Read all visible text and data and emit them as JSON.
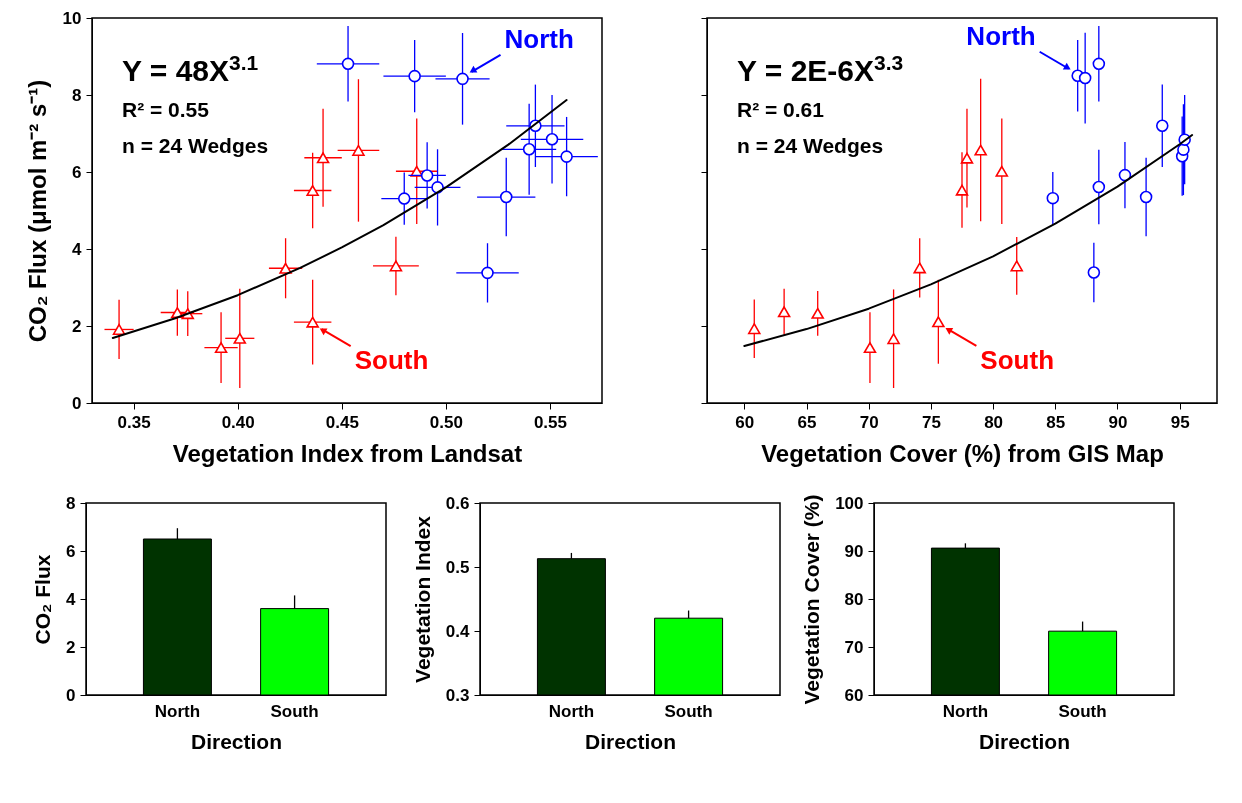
{
  "chart_data": [
    {
      "type": "scatter",
      "xlabel": "Vegetation Index from Landsat",
      "ylabel": "CO₂ Flux (μmol m⁻² s⁻¹)",
      "xlim": [
        0.33,
        0.575
      ],
      "xticks": [
        0.35,
        {
          "value": 0.4,
          "label": "0.40"
        },
        0.45,
        {
          "value": 0.5,
          "label": "0.50"
        },
        0.55
      ],
      "ylim": [
        0,
        10
      ],
      "yticks": [
        0,
        2,
        4,
        6,
        8,
        10
      ],
      "annotations": [
        "Y = 48X$^{3.1}$",
        "R² = 0.55",
        "n = 24 Wedges",
        {
          "text": "North",
          "x": 0.508,
          "y": 8.42
        },
        {
          "text": "South",
          "x": 0.436,
          "y": 2.1
        }
      ],
      "series": [
        {
          "type": "scatter",
          "color": "#ff0000",
          "marker": "triangle",
          "x": [
            0.343,
            0.371,
            0.376,
            0.392,
            0.401,
            0.423,
            0.436,
            0.436,
            0.441,
            0.458,
            0.476,
            0.486
          ],
          "values": [
            1.91,
            2.35,
            2.32,
            1.44,
            1.68,
            3.5,
            2.1,
            5.52,
            6.37,
            6.56,
            3.56,
            6.02
          ],
          "xerrors": [
            0.007,
            0.008,
            0.007,
            0.008,
            0.007,
            0.008,
            0.009,
            0.009,
            0.009,
            0.01,
            0.011,
            0.01
          ],
          "errors": [
            0.77,
            0.6,
            0.58,
            0.92,
            1.29,
            0.78,
            1.1,
            0.98,
            1.27,
            1.85,
            0.76,
            1.37
          ]
        },
        {
          "type": "scatter",
          "color": "#0000ff",
          "marker": "circle",
          "x": [
            0.453,
            0.485,
            0.508,
            0.48,
            0.491,
            0.496,
            0.52,
            0.529,
            0.54,
            0.543,
            0.551,
            0.558
          ],
          "values": [
            8.81,
            8.49,
            8.42,
            5.31,
            5.91,
            5.6,
            3.38,
            5.35,
            6.59,
            7.2,
            6.85,
            6.4
          ],
          "xerrors": [
            0.015,
            0.015,
            0.013,
            0.011,
            0.009,
            0.011,
            0.015,
            0.014,
            0.013,
            0.014,
            0.015,
            0.015
          ],
          "errors": [
            0.98,
            0.94,
            1.19,
            0.68,
            0.86,
            0.99,
            0.77,
            1.02,
            1.18,
            1.07,
            1.15,
            1.03
          ]
        },
        {
          "type": "line",
          "color": "#000000",
          "x": [
            0.34,
            0.37,
            0.4,
            0.43,
            0.45,
            0.47,
            0.5,
            0.53,
            0.558
          ],
          "values": [
            1.69,
            2.2,
            2.8,
            3.51,
            4.04,
            4.62,
            5.6,
            6.71,
            7.87
          ]
        }
      ]
    },
    {
      "type": "scatter",
      "xlabel": "Vegetation Cover (%) from GIS Map",
      "xlim": [
        57,
        98
      ],
      "xticks": [
        60,
        65,
        70,
        75,
        80,
        85,
        90,
        95
      ],
      "ylim": [
        0,
        10
      ],
      "yticks": [
        0,
        2,
        4,
        6,
        8,
        10
      ],
      "tick_labels": "x",
      "annotations": [
        "Y = 2E-6X$^{3.3}$",
        "R² = 0.61",
        "n = 24 Wedges",
        {
          "text": "North",
          "x": 86.8,
          "y": 8.5
        },
        {
          "text": "South",
          "x": 75.6,
          "y": 2.11
        }
      ],
      "series": [
        {
          "type": "scatter",
          "color": "#ff0000",
          "marker": "triangle",
          "x": [
            60.8,
            63.2,
            65.9,
            70.1,
            72.0,
            74.1,
            75.6,
            77.5,
            77.9,
            79.0,
            81.9,
            80.7
          ],
          "values": [
            1.93,
            2.37,
            2.33,
            1.44,
            1.67,
            3.51,
            2.11,
            5.53,
            6.36,
            6.57,
            3.56,
            6.02
          ],
          "errors": [
            0.76,
            0.6,
            0.58,
            0.92,
            1.28,
            0.77,
            1.09,
            0.98,
            1.28,
            1.85,
            0.75,
            1.37
          ]
        },
        {
          "type": "scatter",
          "color": "#0000ff",
          "marker": "circle",
          "x": [
            86.8,
            87.4,
            88.5,
            84.8,
            88.5,
            90.6,
            92.3,
            88.1,
            93.6,
            95.2,
            95.3,
            95.4
          ],
          "values": [
            8.5,
            8.44,
            8.81,
            5.32,
            5.61,
            5.92,
            5.35,
            3.39,
            7.2,
            6.41,
            6.58,
            6.84
          ],
          "errors": [
            0.93,
            1.18,
            0.98,
            0.68,
            0.97,
            0.86,
            1.02,
            0.77,
            1.07,
            1.03,
            1.18,
            1.16
          ]
        },
        {
          "type": "line",
          "color": "#000000",
          "x": [
            60,
            65,
            70,
            75,
            80,
            85,
            90,
            95,
            96
          ],
          "values": [
            1.48,
            1.92,
            2.45,
            3.08,
            3.81,
            4.66,
            5.62,
            6.72,
            6.96
          ]
        }
      ]
    },
    {
      "type": "bar",
      "xlabel": "Direction",
      "ylabel": "CO₂ Flux",
      "categories": [
        "North",
        "South"
      ],
      "values": [
        6.5,
        3.6
      ],
      "colors": [
        "#003300",
        "#00ff00"
      ],
      "errors": [
        [
          6.5,
          6.95
        ],
        [
          3.6,
          4.15
        ]
      ],
      "ylim": [
        0,
        8
      ],
      "yticks": [
        0,
        2,
        4,
        6,
        8
      ]
    },
    {
      "type": "bar",
      "xlabel": "Direction",
      "ylabel": "Vegetation Index",
      "categories": [
        "North",
        "South"
      ],
      "values": [
        0.513,
        0.42
      ],
      "colors": [
        "#003300",
        "#00ff00"
      ],
      "errors": [
        [
          0.513,
          0.522
        ],
        [
          0.42,
          0.432
        ]
      ],
      "ylim": [
        0.3,
        0.6
      ],
      "yticks": [
        0.3,
        0.4,
        0.5,
        0.6
      ]
    },
    {
      "type": "bar",
      "xlabel": "Direction",
      "ylabel": "Vegetation Cover (%)",
      "categories": [
        "North",
        "South"
      ],
      "values": [
        90.6,
        73.3
      ],
      "colors": [
        "#003300",
        "#00ff00"
      ],
      "errors": [
        [
          90.6,
          91.6
        ],
        [
          73.3,
          75.3
        ]
      ],
      "ylim": [
        60,
        100
      ],
      "yticks": [
        60,
        70,
        80,
        90,
        100
      ]
    }
  ]
}
